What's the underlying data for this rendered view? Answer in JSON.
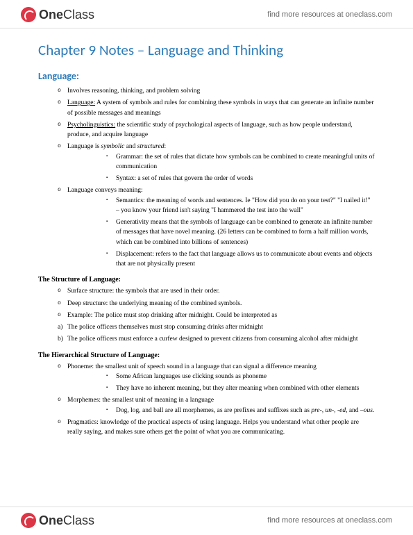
{
  "brand": {
    "one": "One",
    "class": "Class"
  },
  "headerLink": "find more resources at oneclass.com",
  "title": "Chapter 9 Notes – Language and Thinking",
  "sectionHeading": "Language:",
  "lvl1": {
    "a": "Involves reasoning, thinking, and problem solving",
    "b_pre": "Language:",
    "b_post": " A system of symbols and rules for combining these symbols in ways that can generate an infinite number of possible messages and meanings",
    "c_pre": "Psycholinguistics:",
    "c_post": " the scientific study of psychological aspects of language, such as how people understand, produce, and acquire language",
    "d_pre": "Language is ",
    "d_i1": "symbolic",
    "d_mid": " and ",
    "d_i2": "structured",
    "d_end": ":",
    "e": "Language conveys meaning:"
  },
  "lvl2a": {
    "a": "Grammar: the set of rules that dictate how symbols can be combined to create meaningful units of communication",
    "b": "Syntax: a set of rules that govern the order of words"
  },
  "lvl2b": {
    "a": "Semantics: the meaning of words and sentences. Ie \"How did you do on your test?\" \"I nailed it!\" – you know your friend isn't saying \"I hammered the test into the wall\"",
    "b": "Generativity means that the symbols of language can be combined to generate an infinite number of messages that have novel meaning. (26 letters can be combined to form a half million words, which can be combined into billions of sentences)",
    "c": "Displacement: refers to the fact that language allows us to communicate about events and objects that are not physically present"
  },
  "structHeading": "The Structure of Language:",
  "struct": {
    "a": "Surface structure: the symbols that are used in their order.",
    "b": "Deep structure: the underlying meaning of the combined symbols.",
    "c": "Example: The police must stop drinking after midnight. Could be interpreted as",
    "d": "The police officers themselves must stop consuming drinks after midnight",
    "e": "The police officers must enforce a curfew designed to prevent citizens from consuming alcohol after midnight"
  },
  "hierHeading": "The Hierarchical Structure of Language:",
  "hier": {
    "a": "Phoneme: the smallest unit of speech sound in a language that can signal a difference meaning",
    "b": "Morphemes: the smallest unit of meaning in a language",
    "c": "Pragmatics: knowledge of the practical aspects of using language. Helps you understand what other people are really saying, and makes sure others get the point of what you are communicating."
  },
  "hier2a": {
    "a": "Some African languages use clicking sounds as phoneme",
    "b": "They have no inherent meaning, but they alter meaning when combined with other elements"
  },
  "hier2b_pre": "Dog, log, and ball are all morphemes, as are prefixes and suffixes such as ",
  "hier2b_i": "pre-, un-, -ed",
  "hier2b_mid": ", and –",
  "hier2b_i2": "ous",
  "hier2b_end": "."
}
